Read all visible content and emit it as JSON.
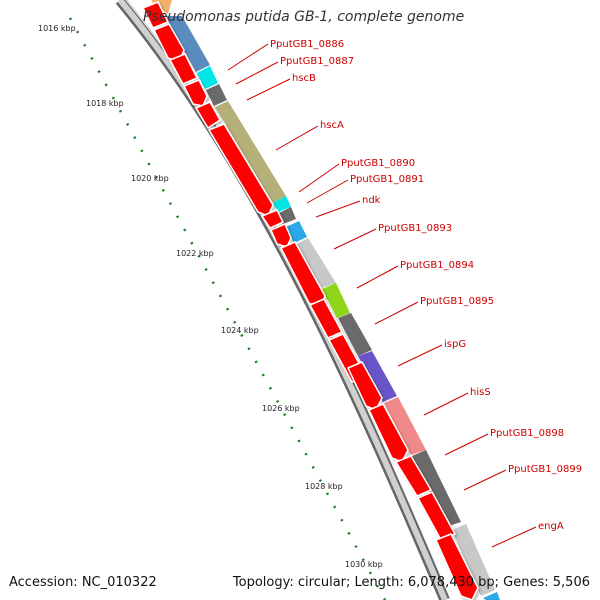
{
  "title": "Pseudomonas putida GB-1, complete genome",
  "footer": {
    "accession": "Accession: NC_010322",
    "summary": "Topology: circular; Length: 6,078,430 bp; Genes: 5,506"
  },
  "scale_labels": [
    "1016 kbp",
    "1018 kbp",
    "1020 kbp",
    "1022 kbp",
    "1024 kbp",
    "1026 kbp",
    "1028 kbp",
    "1030 kbp"
  ],
  "gene_labels": [
    "PputGB1_0886",
    "PputGB1_0887",
    "hscB",
    "hscA",
    "PputGB1_0890",
    "PputGB1_0891",
    "ndk",
    "PputGB1_0893",
    "PputGB1_0894",
    "PputGB1_0895",
    "ispG",
    "hisS",
    "PputGB1_0898",
    "PputGB1_0899",
    "engA"
  ],
  "colors": {
    "gene_arrow": "#ff0000",
    "label": "#cc0000",
    "scale_dots": "#1a7a1a",
    "backbone": "#999999",
    "cog_blocks": [
      "#f4b06a",
      "#5b8cc0",
      "#00e5e5",
      "#6a6a6a",
      "#b5b07a",
      "#00e5e5",
      "#6a6a6a",
      "#2aa8e8",
      "#c8c8c8",
      "#8ed61a",
      "#6a6a6a",
      "#6a55c8",
      "#f08a8a",
      "#6a6a6a",
      "#c8c8c8",
      "#2aa8e8"
    ]
  }
}
